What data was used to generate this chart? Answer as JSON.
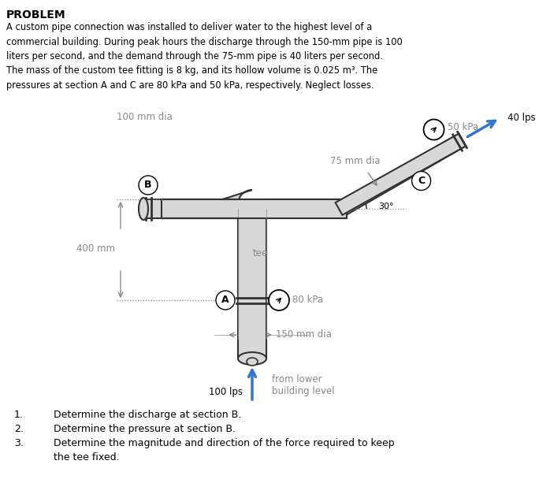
{
  "title": "PROBLEM",
  "problem_text": "A custom pipe connection was installed to deliver water to the highest level of a\ncommercial building. During peak hours the discharge through the 150-mm pipe is 100\nliters per second, and the demand through the 75-mm pipe is 40 liters per second.\nThe mass of the custom tee fitting is 8 kg, and its hollow volume is 0.025 m³. The\npressures at section A and C are 80 kPa and 50 kPa, respectively. Neglect losses.",
  "questions": [
    "Determine the discharge at section B.",
    "Determine the pressure at section B.",
    "Determine the magnitude and direction of the force required to keep\n    the tee fixed."
  ],
  "labels": {
    "100_mm_dia": "100 mm dia",
    "75_mm_dia": "75 mm dia",
    "150_mm_dia": "150 mm dia",
    "section_A": "A",
    "section_B": "B",
    "section_C": "C",
    "pressure_80": "80 kPa",
    "pressure_50": "50 kPa",
    "flow_100": "100 lps",
    "flow_40": "40 lps",
    "tee": "tee",
    "from_lower": "from lower\nbuilding level",
    "400_mm": "400 mm",
    "angle_30": "30°"
  },
  "bg_color": "#ffffff",
  "pipe_color": "#333333",
  "pipe_fill": "#d8d8d8",
  "arrow_color_blue": "#3377cc",
  "text_color": "#000000",
  "dotted_color": "#aaaaaa"
}
